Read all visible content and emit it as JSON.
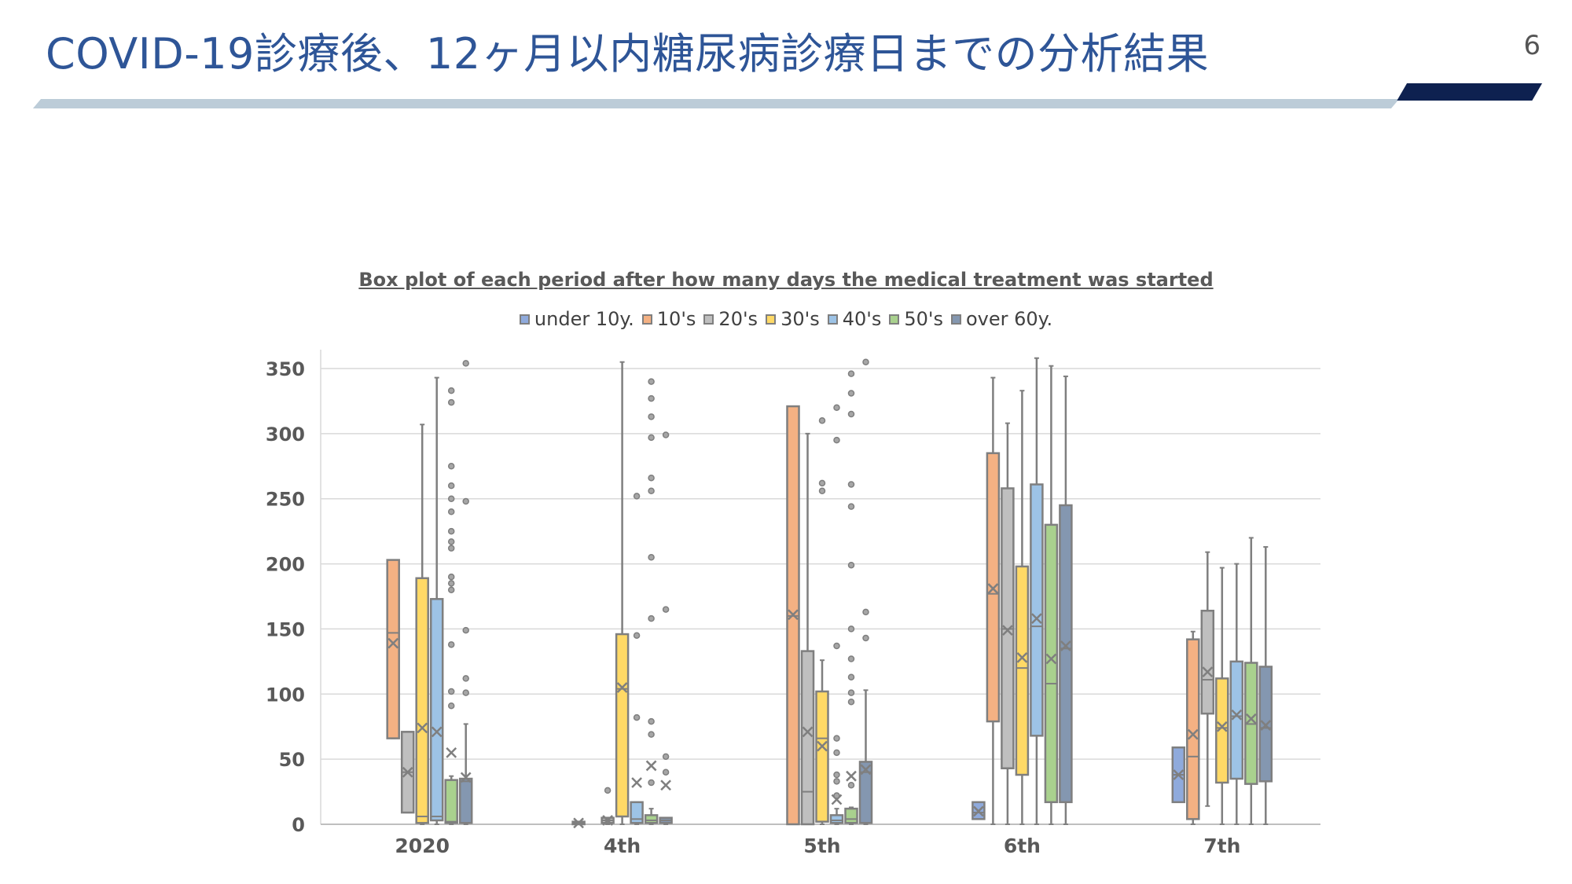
{
  "slide": {
    "title": "COVID-19診療後、12ヶ月以内糖尿病診療日までの分析結果",
    "page_number": "6"
  },
  "chart_data": {
    "type": "box",
    "title": "Box plot of each period after how many days the medical treatment was started",
    "xlabel": "",
    "ylabel": "",
    "ylim": [
      0,
      350
    ],
    "yticks": [
      0,
      50,
      100,
      150,
      200,
      250,
      300,
      350
    ],
    "legend_position": "top",
    "grid": true,
    "categories": [
      "2020",
      "4th",
      "5th",
      "6th",
      "7th"
    ],
    "series": [
      {
        "name": "under 10y.",
        "color": "#8FAADC",
        "boxes": [
          null,
          {
            "q1": 0,
            "median": 1,
            "q3": 2,
            "whisker_low": 0,
            "whisker_high": 2,
            "mean": 1,
            "outliers": []
          },
          null,
          {
            "q1": 4,
            "median": 9,
            "q3": 17,
            "whisker_low": 4,
            "whisker_high": 17,
            "mean": 10,
            "outliers": []
          },
          {
            "q1": 17,
            "median": 38,
            "q3": 59,
            "whisker_low": 17,
            "whisker_high": 59,
            "mean": 38,
            "outliers": []
          }
        ]
      },
      {
        "name": "10's",
        "color": "#F4B183",
        "boxes": [
          {
            "q1": 66,
            "median": 147,
            "q3": 203,
            "whisker_low": 66,
            "whisker_high": 203,
            "mean": 139,
            "outliers": []
          },
          null,
          {
            "q1": 0,
            "median": 160,
            "q3": 321,
            "whisker_low": 0,
            "whisker_high": 321,
            "mean": 161,
            "outliers": []
          },
          {
            "q1": 79,
            "median": 177,
            "q3": 285,
            "whisker_low": 0,
            "whisker_high": 343,
            "mean": 181,
            "outliers": []
          },
          {
            "q1": 4,
            "median": 52,
            "q3": 142,
            "whisker_low": 0,
            "whisker_high": 148,
            "mean": 69,
            "outliers": []
          }
        ]
      },
      {
        "name": "20's",
        "color": "#BFBFBF",
        "boxes": [
          {
            "q1": 9,
            "median": 40,
            "q3": 71,
            "whisker_low": 9,
            "whisker_high": 71,
            "mean": 40,
            "outliers": []
          },
          {
            "q1": 1,
            "median": 3,
            "q3": 5,
            "whisker_low": 0,
            "whisker_high": 5,
            "mean": 3,
            "outliers": [
              26
            ]
          },
          {
            "q1": 0,
            "median": 25,
            "q3": 133,
            "whisker_low": 0,
            "whisker_high": 300,
            "mean": 71,
            "outliers": []
          },
          {
            "q1": 43,
            "median": 150,
            "q3": 258,
            "whisker_low": 0,
            "whisker_high": 308,
            "mean": 149,
            "outliers": []
          },
          {
            "q1": 85,
            "median": 111,
            "q3": 164,
            "whisker_low": 14,
            "whisker_high": 209,
            "mean": 117,
            "outliers": []
          }
        ]
      },
      {
        "name": "30's",
        "color": "#FFD966",
        "boxes": [
          {
            "q1": 1,
            "median": 6,
            "q3": 189,
            "whisker_low": 0,
            "whisker_high": 307,
            "mean": 74,
            "outliers": []
          },
          {
            "q1": 6,
            "median": 104,
            "q3": 146,
            "whisker_low": 0,
            "whisker_high": 355,
            "mean": 105,
            "outliers": []
          },
          {
            "q1": 2,
            "median": 66,
            "q3": 102,
            "whisker_low": 0,
            "whisker_high": 126,
            "mean": 60,
            "outliers": [
              310,
              262,
              256
            ]
          },
          {
            "q1": 38,
            "median": 120,
            "q3": 198,
            "whisker_low": 0,
            "whisker_high": 333,
            "mean": 128,
            "outliers": []
          },
          {
            "q1": 32,
            "median": 74,
            "q3": 112,
            "whisker_low": 0,
            "whisker_high": 197,
            "mean": 75,
            "outliers": []
          }
        ]
      },
      {
        "name": "40's",
        "color": "#9DC3E6",
        "boxes": [
          {
            "q1": 3,
            "median": 6,
            "q3": 173,
            "whisker_low": 0,
            "whisker_high": 343,
            "mean": 71,
            "outliers": []
          },
          {
            "q1": 1,
            "median": 4,
            "q3": 17,
            "whisker_low": 0,
            "whisker_high": 17,
            "mean": 32,
            "outliers": [
              252,
              145,
              82
            ]
          },
          {
            "q1": 1,
            "median": 3,
            "q3": 7,
            "whisker_low": 0,
            "whisker_high": 12,
            "mean": 19,
            "outliers": [
              320,
              295,
              137,
              66,
              55,
              38,
              33,
              22
            ]
          },
          {
            "q1": 68,
            "median": 152,
            "q3": 261,
            "whisker_low": 0,
            "whisker_high": 358,
            "mean": 158,
            "outliers": []
          },
          {
            "q1": 35,
            "median": 83,
            "q3": 125,
            "whisker_low": 0,
            "whisker_high": 200,
            "mean": 84,
            "outliers": []
          }
        ]
      },
      {
        "name": "50's",
        "color": "#A9D18E",
        "boxes": [
          {
            "q1": 1,
            "median": 2,
            "q3": 34,
            "whisker_low": 0,
            "whisker_high": 37,
            "mean": 55,
            "outliers": [
              333,
              324,
              275,
              260,
              250,
              240,
              225,
              217,
              212,
              190,
              185,
              180,
              138,
              102,
              91
            ]
          },
          {
            "q1": 1,
            "median": 3,
            "q3": 7,
            "whisker_low": 0,
            "whisker_high": 12,
            "mean": 45,
            "outliers": [
              340,
              327,
              313,
              297,
              266,
              256,
              205,
              158,
              79,
              69,
              32
            ]
          },
          {
            "q1": 1,
            "median": 4,
            "q3": 12,
            "whisker_low": 0,
            "whisker_high": 13,
            "mean": 37,
            "outliers": [
              346,
              331,
              315,
              261,
              244,
              199,
              150,
              127,
              113,
              101,
              94,
              30
            ]
          },
          {
            "q1": 17,
            "median": 108,
            "q3": 230,
            "whisker_low": 0,
            "whisker_high": 352,
            "mean": 127,
            "outliers": []
          },
          {
            "q1": 31,
            "median": 77,
            "q3": 124,
            "whisker_low": 0,
            "whisker_high": 220,
            "mean": 81,
            "outliers": []
          }
        ]
      },
      {
        "name": "over 60y.",
        "color": "#8497B0",
        "boxes": [
          {
            "q1": 1,
            "median": 33,
            "q3": 35,
            "whisker_low": 0,
            "whisker_high": 77,
            "mean": 36,
            "outliers": [
              354,
              248,
              149,
              112,
              101
            ]
          },
          {
            "q1": 1,
            "median": 3,
            "q3": 5,
            "whisker_low": 0,
            "whisker_high": 5,
            "mean": 30,
            "outliers": [
              299,
              165,
              52,
              40
            ]
          },
          {
            "q1": 1,
            "median": 40,
            "q3": 48,
            "whisker_low": 0,
            "whisker_high": 103,
            "mean": 42,
            "outliers": [
              355,
              163,
              143
            ]
          },
          {
            "q1": 17,
            "median": 135,
            "q3": 245,
            "whisker_low": 0,
            "whisker_high": 344,
            "mean": 137,
            "outliers": []
          },
          {
            "q1": 33,
            "median": 74,
            "q3": 121,
            "whisker_low": 0,
            "whisker_high": 213,
            "mean": 76,
            "outliers": []
          }
        ]
      }
    ]
  }
}
